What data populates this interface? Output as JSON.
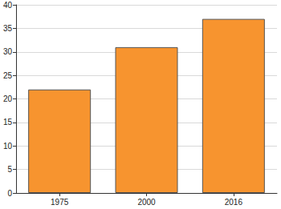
{
  "chart_data": {
    "type": "bar",
    "categories": [
      "1975",
      "2000",
      "2016"
    ],
    "values": [
      22,
      31,
      37
    ],
    "color": "#f7942f",
    "ylim": [
      0,
      40
    ],
    "yticks": [
      0,
      5,
      10,
      15,
      20,
      25,
      30,
      35,
      40
    ],
    "grid": true
  }
}
